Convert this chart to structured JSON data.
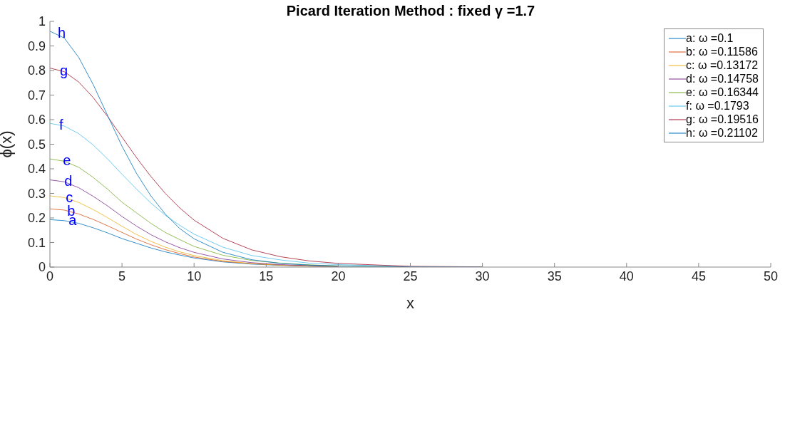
{
  "chart_data": {
    "type": "line",
    "title": "Picard Iteration Method : fixed γ =1.7",
    "xlabel": "x",
    "ylabel": "ϕ(x)",
    "x": [
      0,
      1,
      2,
      3,
      4,
      5,
      6,
      7,
      8,
      9,
      10,
      12,
      14,
      16,
      18,
      20,
      25,
      30
    ],
    "series": [
      {
        "name": "a: ω =0.1",
        "color": "#0072bd",
        "values": [
          0.193,
          0.189,
          0.178,
          0.16,
          0.139,
          0.116,
          0.097,
          0.078,
          0.062,
          0.049,
          0.037,
          0.021,
          0.012,
          0.007,
          0.004,
          0.002,
          null,
          null
        ]
      },
      {
        "name": "b: ω =0.11586",
        "color": "#d95319",
        "values": [
          0.237,
          0.232,
          0.216,
          0.194,
          0.168,
          0.141,
          0.114,
          0.091,
          0.071,
          0.055,
          0.041,
          0.023,
          0.014,
          0.008,
          0.004,
          0.002,
          null,
          null
        ]
      },
      {
        "name": "c: ω =0.13172",
        "color": "#edb120",
        "values": [
          0.29,
          0.283,
          0.263,
          0.234,
          0.201,
          0.166,
          0.133,
          0.105,
          0.081,
          0.062,
          0.047,
          0.026,
          0.014,
          0.008,
          0.004,
          0.002,
          null,
          null
        ]
      },
      {
        "name": "d: ω =0.14758",
        "color": "#7e2f8e",
        "values": [
          0.355,
          0.347,
          0.323,
          0.288,
          0.249,
          0.206,
          0.167,
          0.132,
          0.103,
          0.079,
          0.06,
          0.033,
          0.018,
          0.01,
          0.006,
          0.003,
          null,
          null
        ]
      },
      {
        "name": "e: ω =0.16344",
        "color": "#77ac30",
        "values": [
          0.44,
          0.431,
          0.406,
          0.365,
          0.317,
          0.264,
          0.221,
          0.178,
          0.141,
          0.112,
          0.084,
          0.048,
          0.027,
          0.016,
          0.009,
          0.005,
          0.001,
          null
        ]
      },
      {
        "name": "f: ω =0.1793",
        "color": "#4dbeee",
        "values": [
          0.585,
          0.574,
          0.543,
          0.497,
          0.44,
          0.378,
          0.318,
          0.261,
          0.211,
          0.17,
          0.134,
          0.081,
          0.047,
          0.029,
          0.016,
          0.01,
          0.002,
          null
        ]
      },
      {
        "name": "g: ω =0.19516",
        "color": "#a2142f",
        "values": [
          0.81,
          0.795,
          0.753,
          0.69,
          0.613,
          0.529,
          0.446,
          0.369,
          0.3,
          0.241,
          0.191,
          0.117,
          0.07,
          0.042,
          0.025,
          0.015,
          0.003,
          0.001
        ]
      },
      {
        "name": "h: ω =0.21102",
        "color": "#0072bd",
        "values": [
          0.96,
          0.932,
          0.853,
          0.743,
          0.617,
          0.492,
          0.382,
          0.29,
          0.216,
          0.157,
          0.115,
          0.06,
          0.03,
          0.015,
          0.008,
          0.004,
          0.001,
          0
        ]
      }
    ],
    "annotations": [
      {
        "text": "a",
        "x": 1.1,
        "y": 0.19
      },
      {
        "text": "b",
        "x": 1.0,
        "y": 0.23
      },
      {
        "text": "c",
        "x": 0.9,
        "y": 0.285
      },
      {
        "text": "d",
        "x": 0.8,
        "y": 0.35
      },
      {
        "text": "e",
        "x": 0.7,
        "y": 0.435
      },
      {
        "text": "f",
        "x": 0.45,
        "y": 0.58
      },
      {
        "text": "g",
        "x": 0.5,
        "y": 0.8
      },
      {
        "text": "h",
        "x": 0.35,
        "y": 0.955
      }
    ],
    "xlim": [
      0,
      50
    ],
    "xticks": [
      0,
      5,
      10,
      15,
      20,
      25,
      30,
      35,
      40,
      45,
      50
    ],
    "ylim": [
      0,
      1
    ],
    "yticks": [
      0,
      0.1,
      0.2,
      0.3,
      0.4,
      0.5,
      0.6,
      0.7,
      0.8,
      0.9,
      1
    ],
    "grid": false,
    "legend": "top right",
    "marker": "none",
    "line_style": "solid"
  }
}
